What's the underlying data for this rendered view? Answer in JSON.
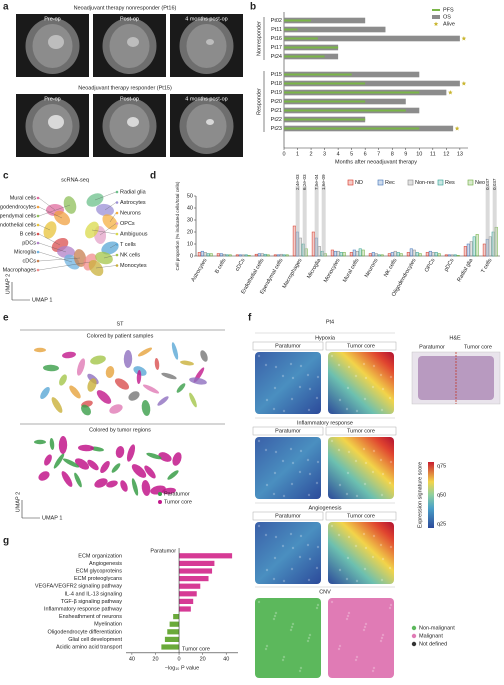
{
  "letters": [
    "a",
    "b",
    "c",
    "d",
    "e",
    "f",
    "g"
  ],
  "panel_a": {
    "rows": [
      {
        "title": "Neoadjuvant therapy nonresponder (Pt16)",
        "labels": [
          "Pre-op",
          "Post-op",
          "4 months post-op"
        ]
      },
      {
        "title": "Neoadjuvant therapy responder (Pt15)",
        "labels": [
          "Pre-op",
          "Post-op",
          "4 months post-op"
        ]
      }
    ]
  },
  "panel_c": {
    "title": "scRNA-seq",
    "axes": [
      "UMAP 1",
      "UMAP 2"
    ],
    "cell_types": [
      {
        "name": "Mural cells",
        "color": "#e06c9f"
      },
      {
        "name": "Oligodendrocytes",
        "color": "#f0a040"
      },
      {
        "name": "Ependymal cells",
        "color": "#8fbf5a"
      },
      {
        "name": "Endothelial cells",
        "color": "#e8c33a"
      },
      {
        "name": "B cells",
        "color": "#d94f4f"
      },
      {
        "name": "pDCs",
        "color": "#b07fc7"
      },
      {
        "name": "Microglia",
        "color": "#6fb3e0"
      },
      {
        "name": "cDCs",
        "color": "#c77f4f"
      },
      {
        "name": "Macrophages",
        "color": "#f28c8c"
      },
      {
        "name": "Radial glia",
        "color": "#6cc08b"
      },
      {
        "name": "Astrocytes",
        "color": "#9b8fd6"
      },
      {
        "name": "Neurons",
        "color": "#f5b041"
      },
      {
        "name": "OPCs",
        "color": "#e4a3c8"
      },
      {
        "name": "Ambiguous",
        "color": "#d9d94a"
      },
      {
        "name": "T cells",
        "color": "#5aa7d6"
      },
      {
        "name": "NK cells",
        "color": "#a4c64a"
      },
      {
        "name": "Monocytes",
        "color": "#c9b03a"
      }
    ]
  },
  "panel_e": {
    "title": "ST",
    "subtitles": [
      "Colored by patient samples",
      "Colored by tumor regions"
    ],
    "axes": [
      "UMAP 1",
      "UMAP 2"
    ],
    "legend": [
      {
        "name": "Paratumor",
        "color": "#3a9e48"
      },
      {
        "name": "Tumor core",
        "color": "#c2188b"
      }
    ]
  },
  "panel_f": {
    "patient": "Pt4",
    "regions": [
      "Paratumor",
      "Tumor core"
    ],
    "he": "H&E",
    "signatures": [
      "Hypoxia",
      "Inflammatory response",
      "Angiogenesis",
      "CNV"
    ],
    "colorbar": {
      "title": "Expression signature score",
      "labels": [
        "q75",
        "q50",
        "q25"
      ]
    },
    "cnv_legend": [
      {
        "name": "Non-malignant",
        "color": "#5cb85c"
      },
      {
        "name": "Malignant",
        "color": "#e07bb5"
      },
      {
        "name": "Not defined",
        "color": "#333333"
      }
    ]
  },
  "chart_data": [
    {
      "type": "survival",
      "xlabel": "Months after neoadjuvant therapy",
      "groups": [
        {
          "name": "Nonresponder",
          "categories": [
            "Pt02",
            "Pt11",
            "Pt16",
            "Pt17",
            "Pt24"
          ]
        },
        {
          "name": "Responder",
          "categories": [
            "Pt15",
            "Pt18",
            "Pt19",
            "Pt20",
            "Pt21",
            "Pt22",
            "Pt23"
          ]
        }
      ],
      "series": [
        {
          "name": "PFS",
          "color": "#7ab648",
          "values": [
            2,
            1,
            2.5,
            4,
            3,
            5,
            6,
            10,
            6,
            9,
            6,
            10
          ]
        },
        {
          "name": "OS",
          "color": "#8c8c8c",
          "values": [
            6,
            7.5,
            13,
            4,
            4,
            10,
            13,
            12,
            9,
            10,
            6,
            12.5
          ]
        }
      ],
      "alive": {
        "name": "Alive",
        "color": "#c9b52f",
        "values": [
          false,
          false,
          true,
          false,
          false,
          false,
          true,
          true,
          false,
          false,
          false,
          true
        ]
      },
      "xlim": [
        0,
        13.6
      ],
      "xticks": [
        0,
        1,
        2,
        3,
        4,
        5,
        6,
        7,
        8,
        9,
        10,
        11,
        12,
        13
      ]
    },
    {
      "type": "grouped_bar",
      "ylabel": "Cell proportion (% indicated cells/total cells)",
      "categories": [
        "Astrocytes",
        "B cells",
        "cDCs",
        "Endothelial cells",
        "Ependymal cells",
        "Macrophages",
        "Microglia",
        "Monocytes",
        "Mural cells",
        "Neurons",
        "NK cells",
        "Oligodendrocytes",
        "OPCs",
        "pDCs",
        "Radial glia",
        "T cells"
      ],
      "series": [
        {
          "name": "ND",
          "color": "#d7301f",
          "values": [
            3,
            2,
            1,
            1.5,
            1,
            25,
            20,
            5,
            3,
            2,
            2,
            3,
            3,
            1,
            8,
            10
          ]
        },
        {
          "name": "Rec",
          "color": "#3b6fb6",
          "values": [
            4,
            2,
            1,
            2,
            1,
            20,
            15,
            4,
            5,
            3,
            3,
            6,
            4,
            1,
            10,
            14
          ]
        },
        {
          "name": "Non-res",
          "color": "#8a8a8a",
          "values": [
            3,
            1.5,
            1,
            2,
            1.5,
            15,
            8,
            4,
            4,
            2,
            4,
            5,
            3,
            1,
            12,
            16
          ]
        },
        {
          "name": "Res",
          "color": "#2a9d8f",
          "values": [
            2,
            1,
            1,
            1.5,
            1,
            10,
            4,
            3,
            6,
            1,
            3,
            3,
            3,
            1,
            16,
            20
          ]
        },
        {
          "name": "Neo",
          "color": "#6aaa3a",
          "values": [
            2,
            1,
            0.5,
            1,
            1,
            6,
            2,
            3,
            5,
            1,
            2,
            2,
            2,
            0.5,
            18,
            24
          ]
        }
      ],
      "annotations": [
        {
          "label": "2.4e-03",
          "category": "Macrophages"
        },
        {
          "label": "6.2e-03",
          "category": "Macrophages"
        },
        {
          "label": "7.5e-04",
          "category": "Microglia"
        },
        {
          "label": "1.6e-09",
          "category": "Microglia"
        },
        {
          "label": "0.037",
          "category": "T cells"
        },
        {
          "label": "0.037",
          "category": "T cells"
        }
      ],
      "ylim": [
        0,
        50
      ],
      "yticks": [
        0,
        10,
        20,
        30,
        40,
        50
      ]
    },
    {
      "type": "diverging_bar",
      "xlabel": "−log₁₀ P value",
      "region_labels": [
        "Paratumor",
        "Tumor core"
      ],
      "colors": [
        "#d63a95",
        "#6aaa3a"
      ],
      "categories": [
        "ECM organization",
        "Angiogenesis",
        "ECM glycoproteins",
        "ECM proteoglycans",
        "VEGFA/VEGFR2 signaling pathway",
        "IL-4 and IL-13 signaling",
        "TGF-β signaling pathway",
        "Inflammatory response pathway",
        "Ensheathment of neurons",
        "Myelination",
        "Oligodendrocyte differentiation",
        "Glial cell development",
        "Acidic amino acid transport"
      ],
      "values": [
        45,
        30,
        28,
        25,
        18,
        15,
        12,
        10,
        -5,
        -8,
        -10,
        -12,
        -15
      ],
      "xlim": [
        -45,
        50
      ],
      "xticks": [
        {
          "value": -40,
          "label": "40"
        },
        {
          "value": -20,
          "label": "20"
        },
        0,
        20,
        40
      ]
    }
  ]
}
